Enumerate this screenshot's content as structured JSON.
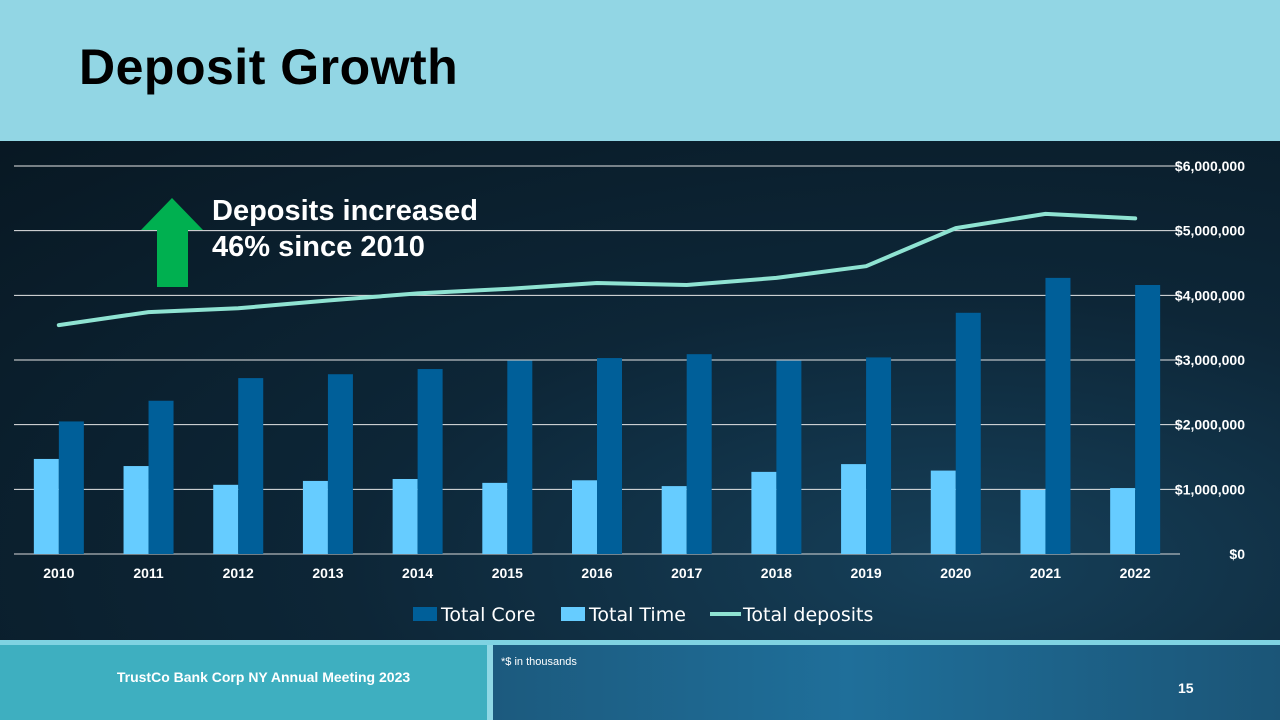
{
  "slide": {
    "title": "Deposit Growth",
    "footer": "TrustCo Bank Corp NY Annual Meeting 2023",
    "footnote": "*$ in thousands",
    "page_number": "15"
  },
  "callout": {
    "line1": "Deposits increased",
    "line2": "46% since 2010",
    "icon": "up-arrow-icon",
    "icon_color": "#00b050"
  },
  "colors": {
    "core": "#005f99",
    "time": "#66ccff",
    "total": "#8fe3d2",
    "header": "#92d6e4"
  },
  "chart_data": {
    "type": "bar+line",
    "categories": [
      "2010",
      "2011",
      "2012",
      "2013",
      "2014",
      "2015",
      "2016",
      "2017",
      "2018",
      "2019",
      "2020",
      "2021",
      "2022"
    ],
    "series": [
      {
        "name": "Total Core",
        "type": "bar",
        "values": [
          2050000,
          2370000,
          2720000,
          2780000,
          2860000,
          2990000,
          3030000,
          3090000,
          2990000,
          3040000,
          3730000,
          4270000,
          4160000
        ]
      },
      {
        "name": "Total Time",
        "type": "bar",
        "values": [
          1470000,
          1360000,
          1070000,
          1130000,
          1160000,
          1100000,
          1140000,
          1050000,
          1270000,
          1390000,
          1290000,
          990000,
          1020000
        ]
      },
      {
        "name": "Total deposits",
        "type": "line",
        "values": [
          3540000,
          3740000,
          3800000,
          3920000,
          4030000,
          4100000,
          4190000,
          4160000,
          4270000,
          4450000,
          5040000,
          5260000,
          5190000
        ]
      }
    ],
    "y_axis": {
      "position": "right",
      "range": [
        0,
        6000000
      ],
      "ticks": [
        0,
        1000000,
        2000000,
        3000000,
        4000000,
        5000000,
        6000000
      ],
      "tick_labels": [
        "$0",
        "$1,000,000",
        "$2,000,000",
        "$3,000,000",
        "$4,000,000",
        "$5,000,000",
        "$6,000,000"
      ]
    },
    "grid": true,
    "legend": [
      "Total Core",
      "Total Time",
      "Total deposits"
    ],
    "legend_position": "bottom"
  }
}
